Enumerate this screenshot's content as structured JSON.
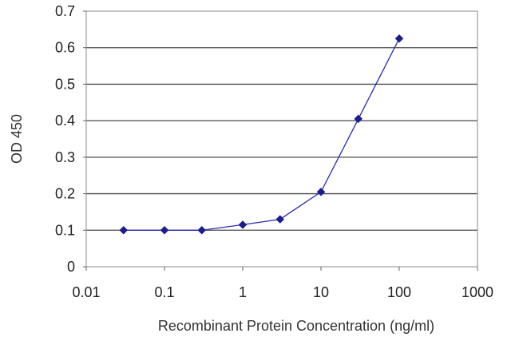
{
  "chart_data": {
    "type": "line",
    "title": "",
    "xlabel": "Recombinant Protein Concentration (ng/ml)",
    "ylabel": "OD 450",
    "x_scale": "log",
    "xlim": [
      0.01,
      1000
    ],
    "ylim": [
      0,
      0.7
    ],
    "x_ticks": [
      0.01,
      0.1,
      1,
      10,
      100,
      1000
    ],
    "x_tick_labels": [
      "0.01",
      "0.1",
      "1",
      "10",
      "100",
      "1000"
    ],
    "y_ticks": [
      0,
      0.1,
      0.2,
      0.3,
      0.4,
      0.5,
      0.6,
      0.7
    ],
    "y_tick_labels": [
      "0",
      "0.1",
      "0.2",
      "0.3",
      "0.4",
      "0.5",
      "0.6",
      "0.7"
    ],
    "grid": "horizontal",
    "legend": "none",
    "series": [
      {
        "color": "#1c1c8c",
        "marker": "diamond",
        "x": [
          0.03,
          0.1,
          0.3,
          1,
          3,
          10,
          30,
          100
        ],
        "y": [
          0.1,
          0.1,
          0.1,
          0.115,
          0.13,
          0.205,
          0.405,
          0.625
        ]
      }
    ]
  }
}
